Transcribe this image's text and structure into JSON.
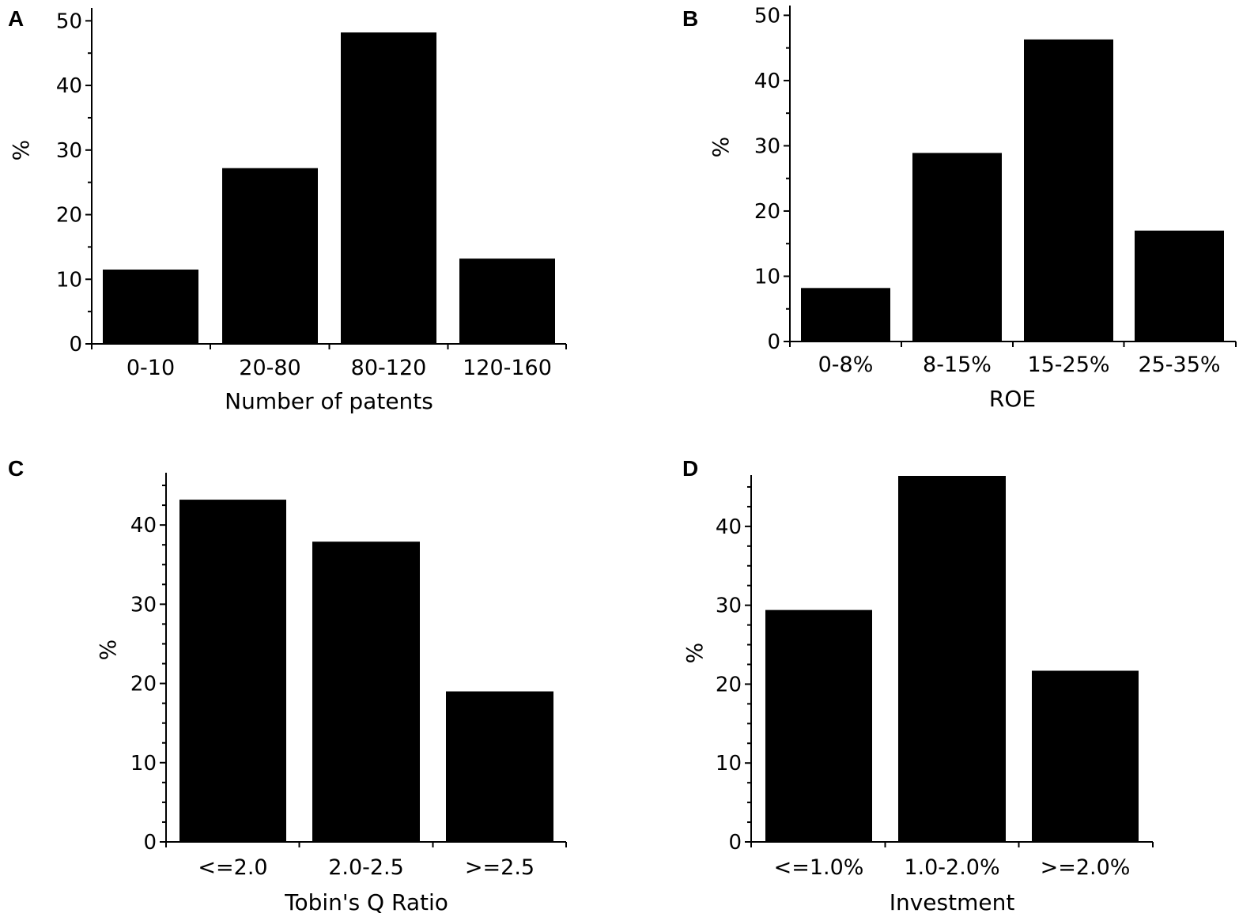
{
  "figure": {
    "panels": [
      "A",
      "B",
      "C",
      "D"
    ]
  },
  "chart_data": [
    {
      "panel": "A",
      "type": "bar",
      "categories": [
        "0-10",
        "20-80",
        "80-120",
        "120-160"
      ],
      "values": [
        11.5,
        27.2,
        48.2,
        13.2
      ],
      "xlabel": "Number of patents",
      "ylabel": "%",
      "ylim": [
        0,
        52
      ],
      "yticks": [
        0,
        10,
        20,
        30,
        40,
        50
      ],
      "color": "#000000"
    },
    {
      "panel": "B",
      "type": "bar",
      "categories": [
        "0-8%",
        "8-15%",
        "15-25%",
        "25-35%"
      ],
      "values": [
        8.2,
        28.9,
        46.3,
        17.0
      ],
      "xlabel": "ROE",
      "ylabel": "%",
      "ylim": [
        0,
        51.5
      ],
      "yticks": [
        0,
        10,
        20,
        30,
        40,
        50
      ],
      "color": "#000000"
    },
    {
      "panel": "C",
      "type": "bar",
      "categories": [
        "<=2.0",
        "2.0-2.5",
        ">=2.5"
      ],
      "values": [
        43.2,
        37.9,
        19.0
      ],
      "xlabel": "Tobin's Q Ratio",
      "ylabel": "%",
      "ylim": [
        0,
        46.6
      ],
      "yticks": [
        0,
        10,
        20,
        30,
        40
      ],
      "color": "#000000"
    },
    {
      "panel": "D",
      "type": "bar",
      "categories": [
        "<=1.0%",
        "1.0-2.0%",
        ">=2.0%"
      ],
      "values": [
        29.4,
        46.4,
        21.7
      ],
      "xlabel": "Investment",
      "ylabel": "%",
      "ylim": [
        0,
        46.5
      ],
      "yticks": [
        0,
        10,
        20,
        30,
        40
      ],
      "color": "#000000"
    }
  ]
}
